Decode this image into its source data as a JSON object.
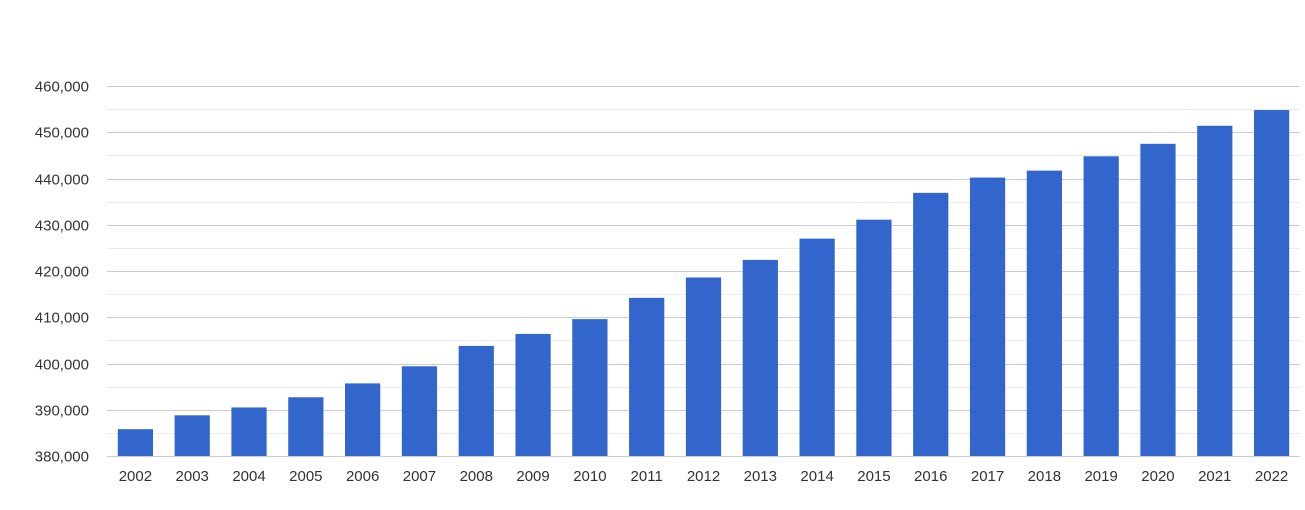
{
  "chart_data": {
    "type": "bar",
    "title": "",
    "xlabel": "",
    "ylabel": "",
    "categories": [
      "2002",
      "2003",
      "2004",
      "2005",
      "2006",
      "2007",
      "2008",
      "2009",
      "2010",
      "2011",
      "2012",
      "2013",
      "2014",
      "2015",
      "2016",
      "2017",
      "2018",
      "2019",
      "2020",
      "2021",
      "2022"
    ],
    "values": [
      385800,
      388800,
      390500,
      392700,
      395700,
      399400,
      403800,
      406400,
      409600,
      414200,
      418600,
      422400,
      427000,
      431100,
      436900,
      440200,
      441700,
      444800,
      447500,
      451400,
      454800
    ],
    "ylim": [
      380000,
      460000
    ],
    "yticks": [
      380000,
      390000,
      400000,
      410000,
      420000,
      430000,
      440000,
      450000,
      460000
    ],
    "ytick_labels": [
      "380,000",
      "390,000",
      "400,000",
      "410,000",
      "420,000",
      "430,000",
      "440,000",
      "450,000",
      "460,000"
    ],
    "grid": true,
    "minor_grid": true,
    "legend": "none",
    "colors": {
      "bar": "#3366cc",
      "grid_major": "#cccccc",
      "grid_minor": "#ebebeb",
      "text": "#333333"
    }
  }
}
